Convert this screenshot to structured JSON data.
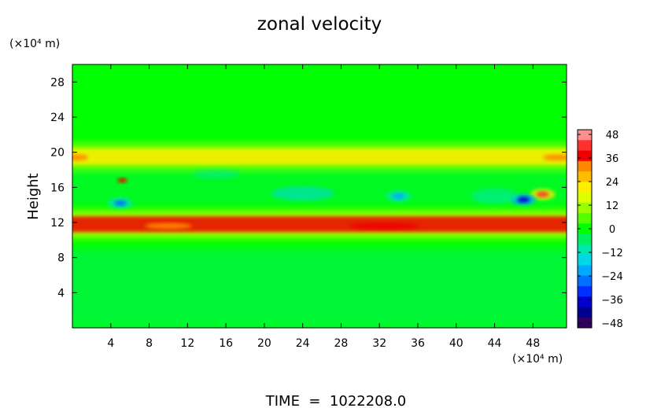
{
  "chart_data": {
    "type": "heatmap",
    "title": "zonal velocity",
    "xlabel": "",
    "ylabel": "Height",
    "x_unit": "(×10⁴ m)",
    "y_unit": "(×10⁴ m)",
    "x_ticks": [
      "4",
      "8",
      "12",
      "16",
      "20",
      "24",
      "28",
      "32",
      "36",
      "40",
      "44",
      "48"
    ],
    "y_ticks": [
      "4",
      "8",
      "12",
      "16",
      "20",
      "24",
      "28"
    ],
    "xlim": [
      0,
      51.5
    ],
    "ylim": [
      0,
      30
    ],
    "colorbar": {
      "ticks": [
        "48",
        "36",
        "24",
        "12",
        "0",
        "−12",
        "−24",
        "−36",
        "−48"
      ],
      "range": [
        -48,
        48
      ],
      "colors": [
        "#ff9090",
        "#ff3030",
        "#ee0000",
        "#ff8800",
        "#ffbb00",
        "#ffee00",
        "#ddff00",
        "#99ff00",
        "#55ff00",
        "#00ff00",
        "#00f060",
        "#00e8b0",
        "#00d8e8",
        "#00a8ff",
        "#0070ff",
        "#0030ff",
        "#0000d0",
        "#000090",
        "#300060"
      ]
    },
    "field_summary": {
      "background_value": 0,
      "features": [
        {
          "name": "upper jet band",
          "height": 19.5,
          "x_range": [
            0,
            51.5
          ],
          "peak_value": 24
        },
        {
          "name": "lower jet band",
          "height": 11.8,
          "x_range": [
            0,
            51.5
          ],
          "peak_value": 36
        },
        {
          "name": "eastern strong positive core",
          "height": 15.2,
          "x": 49,
          "peak_value": 42
        },
        {
          "name": "eastern strong negative core",
          "height": 14.6,
          "x": 47,
          "peak_value": -38
        },
        {
          "name": "western negative core",
          "height": 14.2,
          "x": 5,
          "peak_value": -26
        },
        {
          "name": "mid negative patch",
          "height": 15.0,
          "x": 34,
          "peak_value": -22
        }
      ]
    },
    "footer": "TIME  =  1022208.0"
  }
}
